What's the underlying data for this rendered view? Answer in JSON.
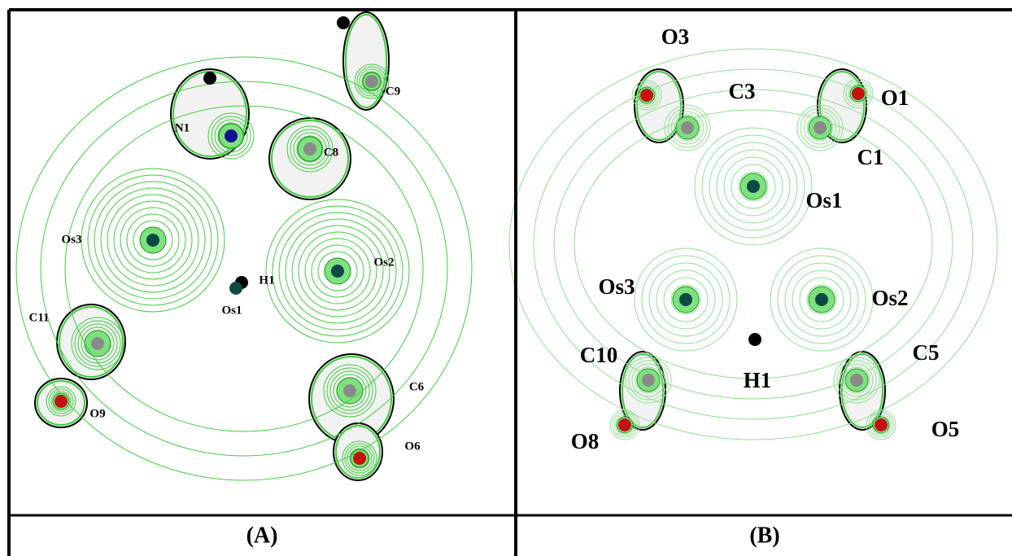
{
  "panels": [
    {
      "caption": "(A)",
      "atoms": [
        "N1",
        "C9",
        "C8",
        "Os3",
        "Os2",
        "H1",
        "Os1",
        "C11",
        "C6",
        "O9",
        "O6"
      ]
    },
    {
      "caption": "(B)",
      "atoms": [
        "O3",
        "C3",
        "O1",
        "C1",
        "Os1",
        "Os3",
        "Os2",
        "C10",
        "C5",
        "H1",
        "O8",
        "O5"
      ]
    }
  ]
}
